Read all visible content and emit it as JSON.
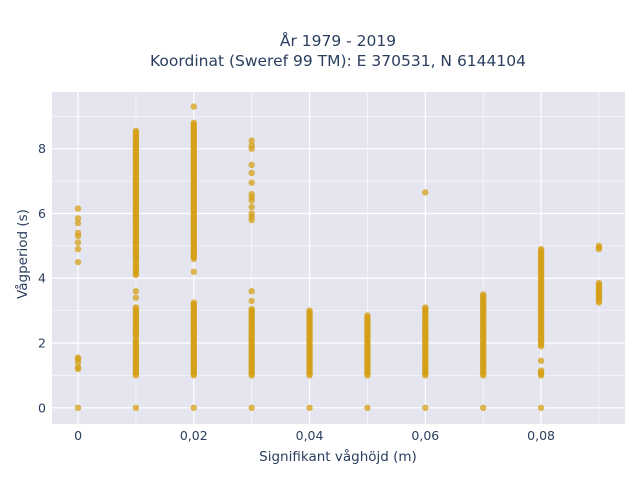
{
  "chart_data": {
    "type": "scatter",
    "title_line1": "År 1979 - 2019",
    "title_line2": "Koordinat (Sweref 99 TM): E 370531, N 6144104",
    "xlabel": "Signifikant våghöjd (m)",
    "ylabel": "Vågperiod (s)",
    "xlim": [
      -0.0045,
      0.0945
    ],
    "ylim": [
      -0.5,
      9.75
    ],
    "x_ticks": [
      {
        "value": 0,
        "label": "0"
      },
      {
        "value": 0.02,
        "label": "0,02"
      },
      {
        "value": 0.04,
        "label": "0,04"
      },
      {
        "value": 0.06,
        "label": "0,06"
      },
      {
        "value": 0.08,
        "label": "0,08"
      }
    ],
    "y_ticks": [
      {
        "value": 0,
        "label": "0"
      },
      {
        "value": 2,
        "label": "2"
      },
      {
        "value": 4,
        "label": "4"
      },
      {
        "value": 6,
        "label": "6"
      },
      {
        "value": 8,
        "label": "8"
      }
    ],
    "grid": true,
    "colors": {
      "plot_bg": "#e5e5f0",
      "grid": "#ffffff",
      "marker": "#d4a017"
    },
    "series": [
      {
        "x_groups": [
          {
            "x": 0,
            "points": [
              0,
              1.2,
              1.25,
              1.4,
              1.5,
              1.55,
              4.5,
              4.9,
              5.1,
              5.3,
              5.4,
              5.7,
              5.85,
              6.15
            ]
          },
          {
            "x": 0.01,
            "ranges": [
              [
                0,
                0
              ],
              [
                1.0,
                2.1
              ],
              [
                2.2,
                3.1
              ],
              [
                4.1,
                4.4
              ],
              [
                4.5,
                8.55
              ]
            ],
            "points": [
              3.4,
              3.6
            ]
          },
          {
            "x": 0.02,
            "ranges": [
              [
                0,
                0
              ],
              [
                1.0,
                3.25
              ],
              [
                4.6,
                8.8
              ]
            ],
            "points": [
              4.2,
              9.3
            ]
          },
          {
            "x": 0.03,
            "ranges": [
              [
                0,
                0
              ],
              [
                1.0,
                3.05
              ]
            ],
            "points": [
              3.3,
              3.6,
              5.8,
              5.9,
              6.0,
              6.2,
              6.4,
              6.5,
              6.6,
              6.95,
              7.25,
              7.5,
              8.0,
              8.1,
              8.25
            ]
          },
          {
            "x": 0.04,
            "ranges": [
              [
                0,
                0
              ],
              [
                1.0,
                3.0
              ]
            ],
            "points": []
          },
          {
            "x": 0.05,
            "ranges": [
              [
                0,
                0
              ],
              [
                1.0,
                2.85
              ]
            ],
            "points": []
          },
          {
            "x": 0.06,
            "ranges": [
              [
                0,
                0
              ],
              [
                1.0,
                3.1
              ]
            ],
            "points": [
              6.65
            ]
          },
          {
            "x": 0.07,
            "ranges": [
              [
                0,
                0
              ],
              [
                1.0,
                3.5
              ]
            ],
            "points": []
          },
          {
            "x": 0.08,
            "ranges": [
              [
                0,
                0
              ],
              [
                1.0,
                1.15
              ],
              [
                1.45,
                1.45
              ],
              [
                1.9,
                4.9
              ]
            ],
            "points": []
          },
          {
            "x": 0.09,
            "ranges": [
              [
                3.25,
                3.85
              ]
            ],
            "points": [
              4.9,
              4.95,
              5.0
            ]
          }
        ]
      }
    ]
  }
}
